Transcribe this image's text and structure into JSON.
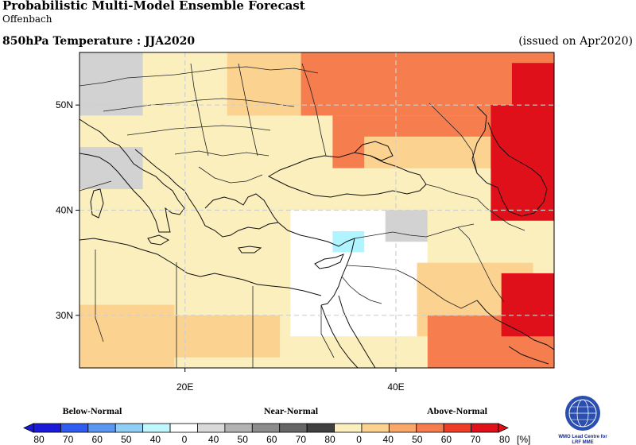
{
  "header": {
    "title": "Probabilistic Multi-Model Ensemble Forecast",
    "subtitle": "Offenbach",
    "variable": "850hPa Temperature : JJA2020",
    "issued": "(issued on Apr2020)"
  },
  "map": {
    "lon_range": [
      10,
      55
    ],
    "lat_range": [
      25,
      55
    ],
    "lat_ticks": [
      {
        "value": 50,
        "label": "50N"
      },
      {
        "value": 40,
        "label": "40N"
      },
      {
        "value": 30,
        "label": "30N"
      }
    ],
    "lon_ticks": [
      {
        "value": 20,
        "label": "20E"
      },
      {
        "value": 40,
        "label": "40E"
      }
    ],
    "grid": true,
    "cells": [
      {
        "lon": [
          10,
          16
        ],
        "lat": [
          49,
          55
        ],
        "cat": "near-40"
      },
      {
        "lon": [
          10,
          16
        ],
        "lat": [
          42,
          46
        ],
        "cat": "near-40"
      },
      {
        "lon": [
          24,
          32
        ],
        "lat": [
          49,
          55
        ],
        "cat": "above-50"
      },
      {
        "lon": [
          31,
          55
        ],
        "lat": [
          49,
          55
        ],
        "cat": "above-70"
      },
      {
        "lon": [
          34,
          55
        ],
        "lat": [
          44,
          49
        ],
        "cat": "above-70"
      },
      {
        "lon": [
          37,
          49
        ],
        "lat": [
          44,
          47
        ],
        "cat": "above-50"
      },
      {
        "lon": [
          49,
          55
        ],
        "lat": [
          39,
          50
        ],
        "cat": "above-80"
      },
      {
        "lon": [
          51,
          55
        ],
        "lat": [
          41,
          54
        ],
        "cat": "above-80"
      },
      {
        "lon": [
          10,
          19
        ],
        "lat": [
          25,
          31
        ],
        "cat": "above-50"
      },
      {
        "lon": [
          19,
          29
        ],
        "lat": [
          26,
          30
        ],
        "cat": "above-50"
      },
      {
        "lon": [
          30,
          43
        ],
        "lat": [
          28,
          40
        ],
        "cat": "normal"
      },
      {
        "lon": [
          34,
          37
        ],
        "lat": [
          36,
          38
        ],
        "cat": "below-40"
      },
      {
        "lon": [
          39,
          43
        ],
        "lat": [
          37,
          40
        ],
        "cat": "near-40"
      },
      {
        "lon": [
          42,
          53
        ],
        "lat": [
          28,
          35
        ],
        "cat": "above-50"
      },
      {
        "lon": [
          43,
          55
        ],
        "lat": [
          25,
          30
        ],
        "cat": "above-70"
      },
      {
        "lon": [
          50,
          55
        ],
        "lat": [
          28,
          34
        ],
        "cat": "above-80"
      },
      {
        "lon": [
          53,
          55
        ],
        "lat": [
          30,
          33
        ],
        "cat": "above-80"
      }
    ]
  },
  "legend": {
    "categories": [
      "Below-Normal",
      "Near-Normal",
      "Above-Normal"
    ],
    "labels": [
      "80",
      "70",
      "60",
      "50",
      "40",
      "0",
      "40",
      "50",
      "60",
      "70",
      "80",
      "0",
      "40",
      "50",
      "60",
      "70",
      "80"
    ],
    "unit": "[%]",
    "colors": [
      "#1a1ad8",
      "#2f5df0",
      "#5a97f2",
      "#8fcef5",
      "#c0f7ff",
      "#ffffff",
      "#d9d9d9",
      "#b3b3b3",
      "#8c8c8c",
      "#666666",
      "#404040",
      "#faefbd",
      "#fcd290",
      "#f9a86a",
      "#f67d4e",
      "#ee3d29",
      "#e0101a"
    ],
    "cell_colors": {
      "normal": "#ffffff",
      "below-40": "#b0f4ff",
      "near-40": "#d2d2d2",
      "above-40": "#faefbd",
      "above-50": "#fcd290",
      "above-60": "#f9a86a",
      "above-70": "#f67d4e",
      "above-80": "#e0101a"
    }
  },
  "logo": {
    "line1": "WMO Lead Centre for",
    "line2": "LRF MME",
    "icon": "wmo-globe-icon"
  }
}
